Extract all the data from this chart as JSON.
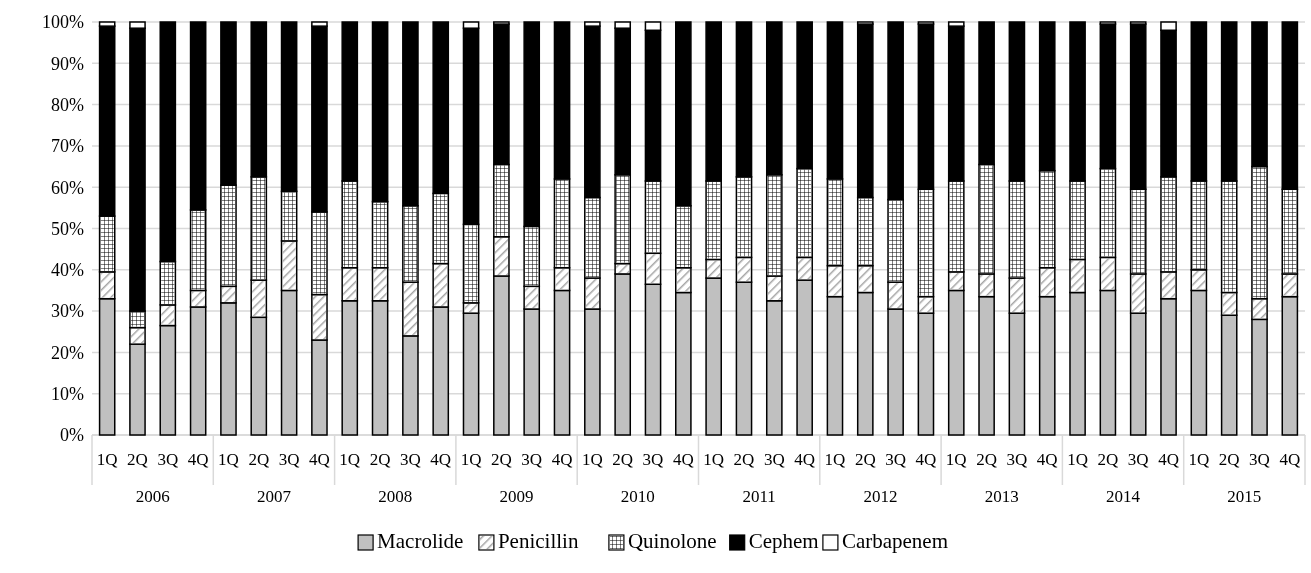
{
  "chart_data": {
    "type": "bar",
    "stacked": true,
    "categories": [
      "1Q",
      "2Q",
      "3Q",
      "4Q",
      "1Q",
      "2Q",
      "3Q",
      "4Q",
      "1Q",
      "2Q",
      "3Q",
      "4Q",
      "1Q",
      "2Q",
      "3Q",
      "4Q",
      "1Q",
      "2Q",
      "3Q",
      "4Q",
      "1Q",
      "2Q",
      "3Q",
      "4Q",
      "1Q",
      "2Q",
      "3Q",
      "4Q",
      "1Q",
      "2Q",
      "3Q",
      "4Q",
      "1Q",
      "2Q",
      "3Q",
      "4Q",
      "1Q",
      "2Q",
      "3Q",
      "4Q"
    ],
    "annotations": [
      "2006",
      "2007",
      "2008",
      "2009",
      "2010",
      "2011",
      "2012",
      "2013",
      "2014",
      "2015"
    ],
    "ylim": [
      0,
      100
    ],
    "yticks": [
      {
        "value": 0,
        "label": "0%"
      },
      {
        "value": 10,
        "label": "10%"
      },
      {
        "value": 20,
        "label": "20%"
      },
      {
        "value": 30,
        "label": "30%"
      },
      {
        "value": 40,
        "label": "40%"
      },
      {
        "value": 50,
        "label": "50%"
      },
      {
        "value": 60,
        "label": "60%"
      },
      {
        "value": 70,
        "label": "70%"
      },
      {
        "value": 80,
        "label": "80%"
      },
      {
        "value": 90,
        "label": "90%"
      },
      {
        "value": 100,
        "label": "100%"
      }
    ],
    "grid": "y",
    "legend": "bottom",
    "series": [
      {
        "name": "Macrolide",
        "color": "#c0c0c0",
        "values": [
          33,
          22,
          26.5,
          31,
          32,
          28.5,
          35,
          23,
          32.5,
          32.5,
          24,
          31,
          29.5,
          38.5,
          30.5,
          35,
          30.5,
          39,
          36.5,
          34.5,
          38,
          37,
          32.5,
          37.5,
          33.5,
          34.5,
          30.5,
          29.5,
          35,
          33.5,
          29.5,
          33.5,
          34.5,
          35,
          29.5,
          33,
          35,
          29,
          28,
          33.5
        ]
      },
      {
        "name": "Penicillin",
        "color": "#ffffff",
        "values": [
          6.5,
          4,
          5,
          4,
          4,
          9,
          12,
          11,
          8,
          8,
          13,
          10.5,
          2.5,
          9.5,
          5.5,
          5.5,
          7.5,
          2.5,
          7.5,
          6,
          4.5,
          6,
          6,
          5.5,
          7.5,
          6.5,
          6.5,
          4,
          4.5,
          5.5,
          8.5,
          7,
          8,
          8,
          9.5,
          6.5,
          5,
          5.5,
          5,
          5.5
        ]
      },
      {
        "name": "Quinolone",
        "color": "#ffffff",
        "values": [
          13.5,
          4,
          10.5,
          19.5,
          24.5,
          25,
          12,
          20,
          21,
          16,
          18.5,
          17,
          19,
          17.5,
          14.5,
          21.5,
          19.5,
          21.5,
          17.5,
          15,
          19,
          19.5,
          24.5,
          21.5,
          21,
          16.5,
          20,
          26,
          22,
          26.5,
          23.5,
          23.5,
          19,
          21.5,
          20.5,
          23,
          21.5,
          27,
          32,
          20.5
        ]
      },
      {
        "name": "Cephem",
        "color": "#000000",
        "values": [
          46,
          68.5,
          58,
          45.5,
          39.5,
          37.5,
          41,
          45,
          38.5,
          43.5,
          44.5,
          41.5,
          47.5,
          34,
          49.5,
          38,
          41.5,
          35.5,
          36.5,
          44.5,
          38.5,
          37.5,
          37,
          35.5,
          38,
          42,
          43,
          40,
          37.5,
          34.5,
          38.5,
          36,
          38.5,
          35,
          40,
          35.5,
          38.5,
          38.5,
          35,
          40.5
        ]
      },
      {
        "name": "Carbapenem",
        "color": "#ffffff",
        "values": [
          1,
          1.5,
          0,
          0,
          0,
          0,
          0,
          1,
          0,
          0,
          0,
          0,
          1.5,
          0.5,
          0,
          0,
          1,
          1.5,
          2,
          0,
          0,
          0,
          0,
          0,
          0,
          0.5,
          0,
          0.5,
          1,
          0,
          0,
          0,
          0,
          0.5,
          0.5,
          2,
          0,
          0,
          0,
          0
        ]
      }
    ]
  }
}
